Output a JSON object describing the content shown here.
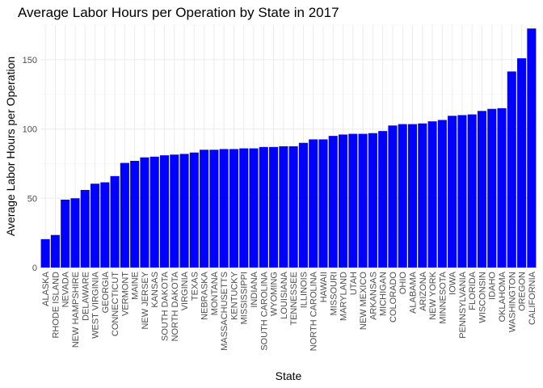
{
  "chart_data": {
    "type": "bar",
    "title": "Average Labor Hours per Operation by State in 2017",
    "xlabel": "State",
    "ylabel": "Average Labor Hours per Operation",
    "ylim": [
      0,
      175
    ],
    "yticks": [
      0,
      50,
      100,
      150
    ],
    "grid": true,
    "bar_color": "#0000ff",
    "categories": [
      "ALASKA",
      "RHODE ISLAND",
      "NEVADA",
      "NEW HAMPSHIRE",
      "DELAWARE",
      "WEST VIRGINIA",
      "GEORGIA",
      "CONNECTICUT",
      "VERMONT",
      "MAINE",
      "NEW JERSEY",
      "KANSAS",
      "SOUTH DAKOTA",
      "NORTH DAKOTA",
      "VIRGINIA",
      "TEXAS",
      "NEBRASKA",
      "MONTANA",
      "MASSACHUSETTS",
      "KENTUCKY",
      "MISSISSIPPI",
      "INDIANA",
      "SOUTH CAROLINA",
      "WYOMING",
      "LOUISIANA",
      "TENNESSEE",
      "ILLINOIS",
      "NORTH CAROLINA",
      "HAWAII",
      "MISSOURI",
      "MARYLAND",
      "UTAH",
      "NEW MEXICO",
      "ARKANSAS",
      "MICHIGAN",
      "COLORADO",
      "OHIO",
      "ALABAMA",
      "ARIZONA",
      "NEW YORK",
      "MINNESOTA",
      "IOWA",
      "PENNSYLVANIA",
      "FLORIDA",
      "WISCONSIN",
      "IDAHO",
      "OKLAHOMA",
      "WASHINGTON",
      "OREGON",
      "CALIFORNIA"
    ],
    "values": [
      20.5,
      23.5,
      49,
      50,
      56,
      60.5,
      61.5,
      66,
      75.5,
      77,
      79.5,
      80,
      81,
      81.5,
      82,
      83,
      85,
      85,
      85.5,
      85.5,
      86,
      86,
      87,
      87,
      87.5,
      87.5,
      90,
      92.5,
      92.5,
      95,
      96,
      96.5,
      96.5,
      97,
      98.5,
      102.5,
      103.5,
      103.5,
      104,
      105.5,
      106.5,
      109.5,
      110,
      110.5,
      113,
      114.5,
      115,
      141.5,
      151,
      172.5
    ]
  }
}
